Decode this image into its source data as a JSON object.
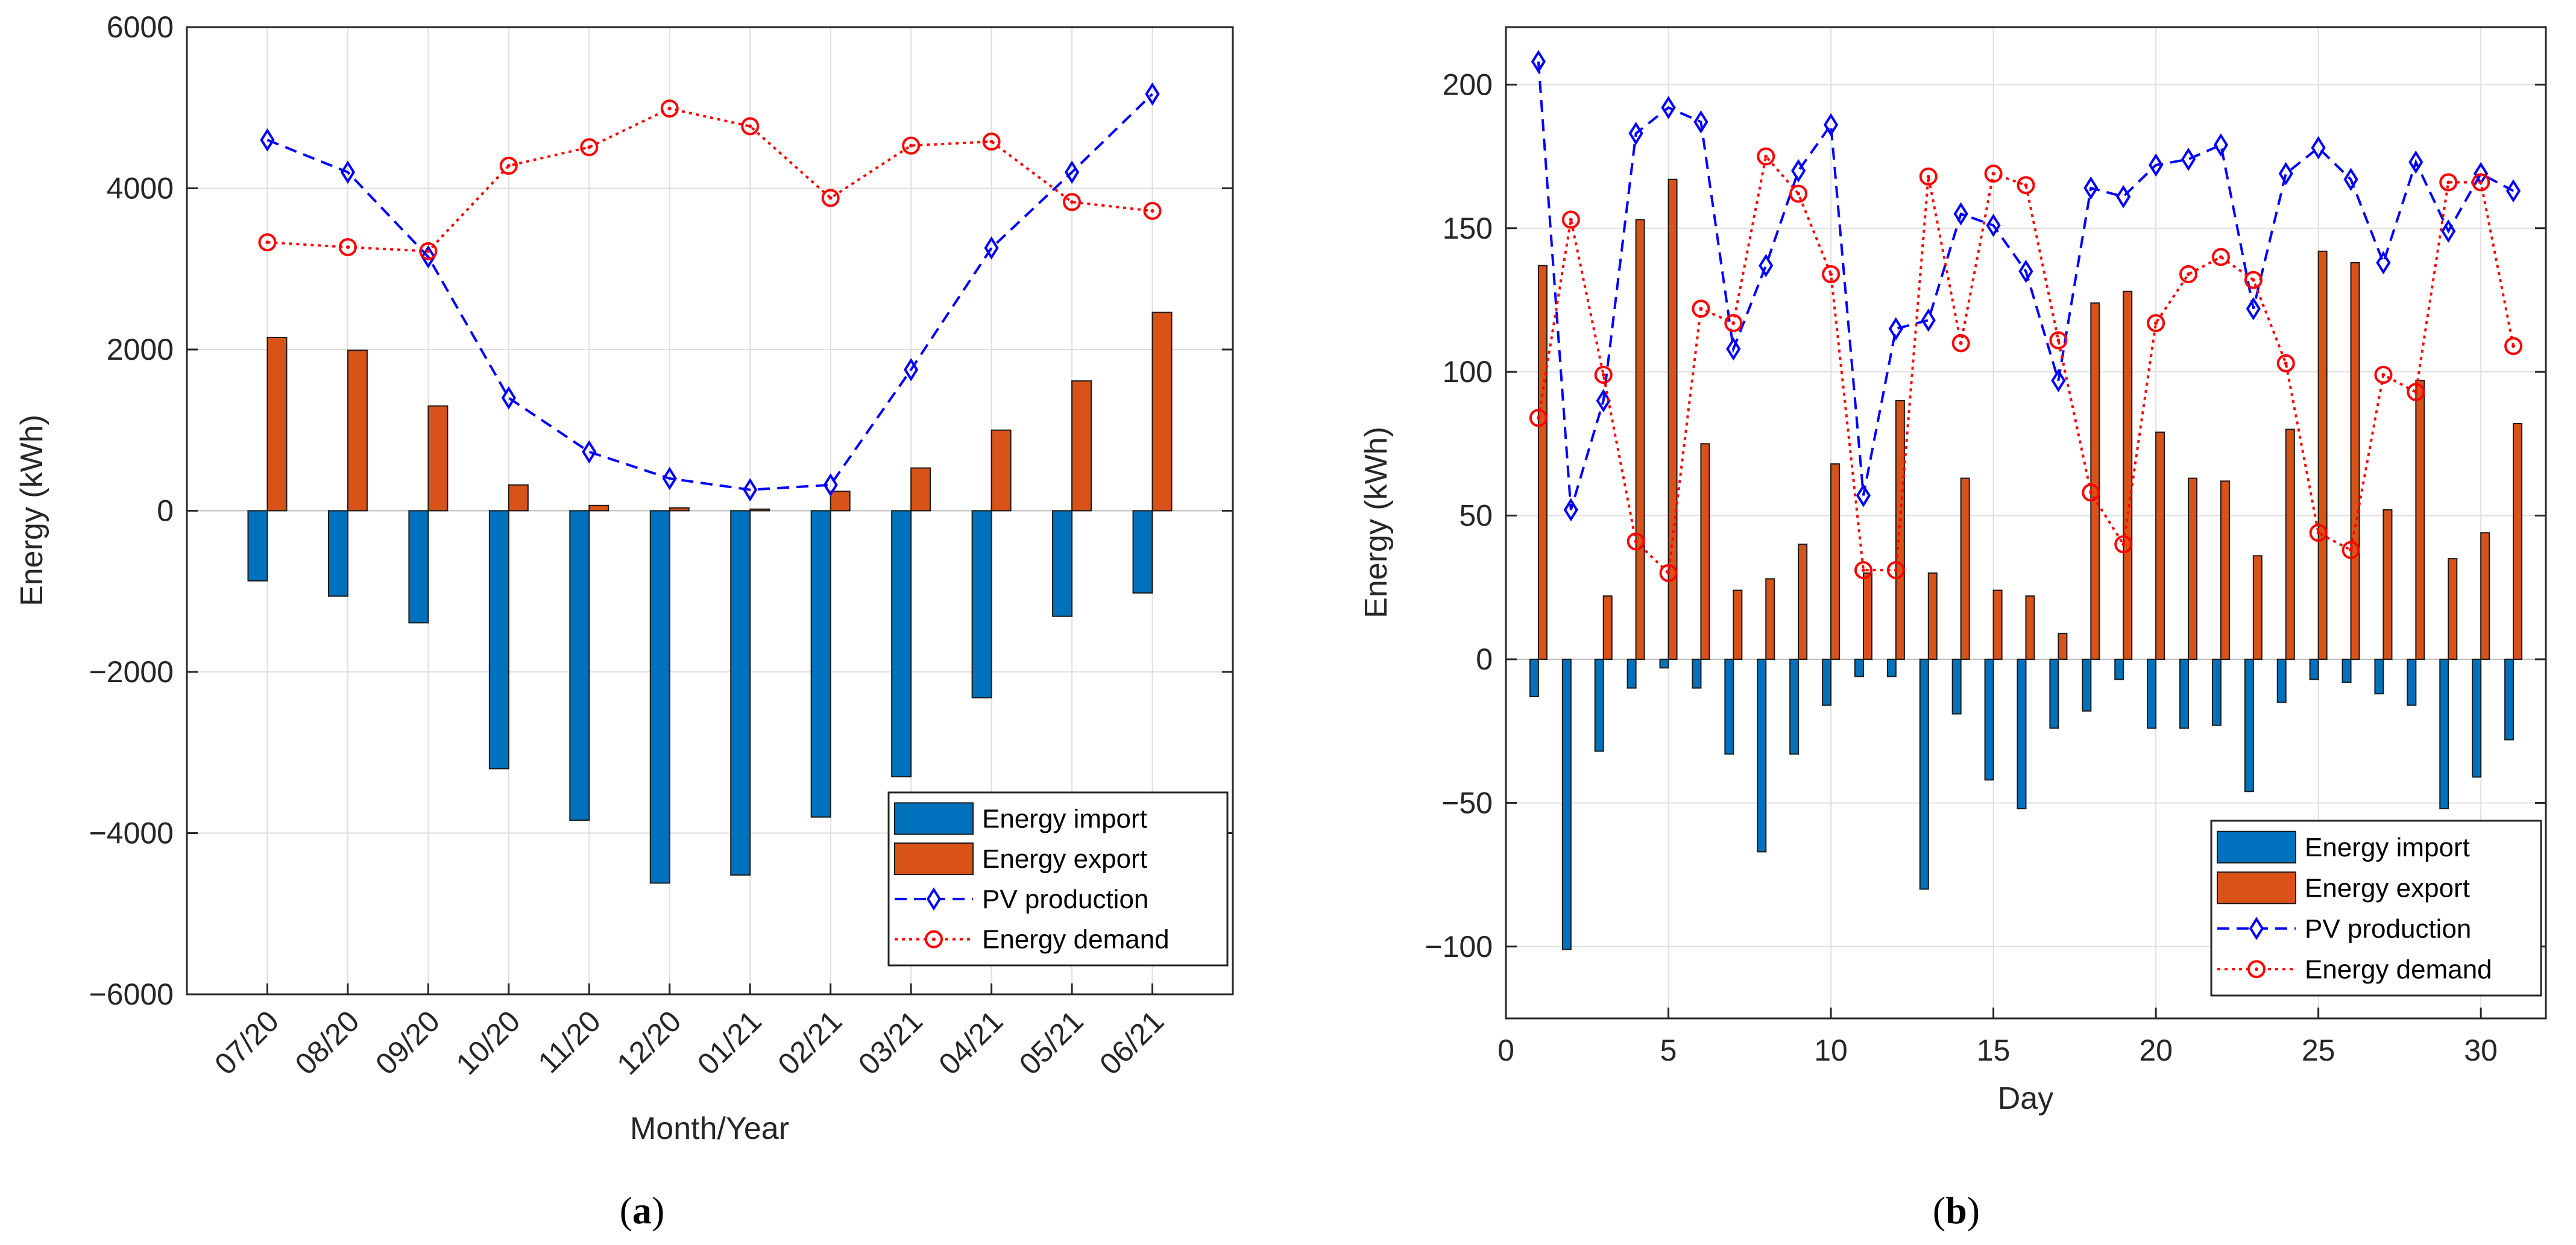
{
  "chart_data": [
    {
      "id": "a",
      "type": "bar+line",
      "caption": "a",
      "xlabel": "Month/Year",
      "ylabel": "Energy (kWh)",
      "ylim": [
        -6000,
        6000
      ],
      "yticks": [
        -6000,
        -4000,
        -2000,
        0,
        2000,
        4000,
        6000
      ],
      "yticklabels": [
        "−6000",
        "−4000",
        "−2000",
        "0",
        "2000",
        "4000",
        "6000"
      ],
      "grid": true,
      "legend_location": "bottom-right",
      "categories": [
        "07/20",
        "08/20",
        "09/20",
        "10/20",
        "11/20",
        "12/20",
        "01/21",
        "02/21",
        "03/21",
        "04/21",
        "05/21",
        "06/21"
      ],
      "series": [
        {
          "name": "Energy import",
          "kind": "bar",
          "color": "#0072BD",
          "values": [
            -870,
            -1060,
            -1390,
            -3200,
            -3840,
            -4620,
            -4520,
            -3800,
            -3300,
            -2320,
            -1310,
            -1020
          ]
        },
        {
          "name": "Energy export",
          "kind": "bar",
          "color": "#D95319",
          "values": [
            2150,
            1990,
            1300,
            320,
            65,
            35,
            20,
            240,
            530,
            1000,
            1610,
            2460
          ]
        },
        {
          "name": "PV production",
          "kind": "line",
          "style": "dashed",
          "marker": "diamond",
          "color": "#0000FF",
          "values": [
            4600,
            4200,
            3150,
            1400,
            730,
            400,
            260,
            320,
            1750,
            3260,
            4200,
            5170
          ]
        },
        {
          "name": "Energy demand",
          "kind": "line",
          "style": "dotted",
          "marker": "circle",
          "color": "#FF0000",
          "values": [
            3330,
            3270,
            3220,
            4280,
            4510,
            4990,
            4770,
            3880,
            4530,
            4580,
            3830,
            3720
          ]
        }
      ]
    },
    {
      "id": "b",
      "type": "bar+line",
      "caption": "b",
      "xlabel": "Day",
      "ylabel": "Energy (kWh)",
      "xlim": [
        0,
        32
      ],
      "xticks": [
        0,
        5,
        10,
        15,
        20,
        25,
        30
      ],
      "xticklabels": [
        "0",
        "5",
        "10",
        "15",
        "20",
        "25",
        "30"
      ],
      "ylim": [
        -125,
        220
      ],
      "yticks": [
        -100,
        -50,
        0,
        50,
        100,
        150,
        200
      ],
      "yticklabels": [
        "−100",
        "−50",
        "0",
        "50",
        "100",
        "150",
        "200"
      ],
      "grid": true,
      "legend_location": "bottom-right",
      "x": [
        1,
        2,
        3,
        4,
        5,
        6,
        7,
        8,
        9,
        10,
        11,
        12,
        13,
        14,
        15,
        16,
        17,
        18,
        19,
        20,
        21,
        22,
        23,
        24,
        25,
        26,
        27,
        28,
        29,
        30,
        31
      ],
      "series": [
        {
          "name": "Energy import",
          "kind": "bar",
          "color": "#0072BD",
          "values": [
            -13,
            -101,
            -32,
            -10,
            -3,
            -10,
            -33,
            -67,
            -33,
            -16,
            -6,
            -6,
            -80,
            -19,
            -42,
            -52,
            -24,
            -18,
            -7,
            -24,
            -24,
            -23,
            -46,
            -15,
            -7,
            -8,
            -12,
            -16,
            -52,
            -41,
            -28
          ]
        },
        {
          "name": "Energy export",
          "kind": "bar",
          "color": "#D95319",
          "values": [
            137,
            0,
            22,
            153,
            167,
            75,
            24,
            28,
            40,
            68,
            30,
            90,
            30,
            63,
            24,
            22,
            9,
            124,
            128,
            79,
            63,
            62,
            36,
            80,
            142,
            138,
            52,
            97,
            35,
            44,
            82
          ]
        },
        {
          "name": "PV production",
          "kind": "line",
          "style": "dashed",
          "marker": "diamond",
          "color": "#0000FF",
          "values": [
            208,
            52,
            90,
            183,
            192,
            187,
            108,
            137,
            170,
            186,
            57,
            115,
            118,
            155,
            151,
            135,
            97,
            164,
            161,
            172,
            174,
            179,
            122,
            169,
            178,
            167,
            138,
            173,
            149,
            169,
            163
          ]
        },
        {
          "name": "Energy demand",
          "kind": "line",
          "style": "dotted",
          "marker": "circle",
          "color": "#FF0000",
          "values": [
            84,
            153,
            99,
            41,
            30,
            122,
            117,
            175,
            162,
            134,
            31,
            31,
            168,
            110,
            169,
            165,
            111,
            58,
            40,
            117,
            134,
            140,
            132,
            103,
            44,
            38,
            99,
            93,
            166,
            166,
            109
          ]
        }
      ]
    }
  ]
}
